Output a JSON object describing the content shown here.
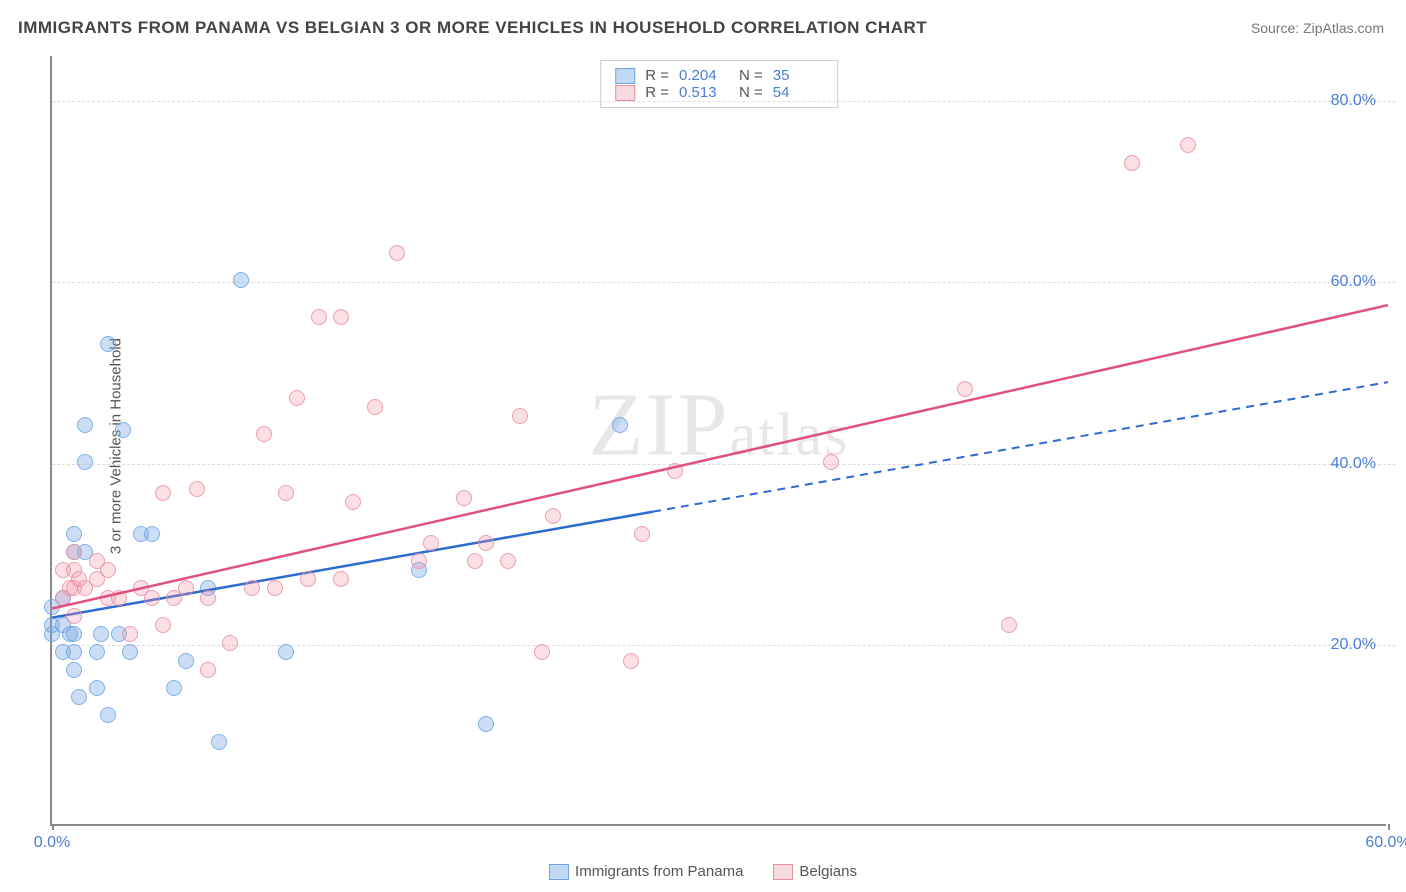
{
  "title": "IMMIGRANTS FROM PANAMA VS BELGIAN 3 OR MORE VEHICLES IN HOUSEHOLD CORRELATION CHART",
  "source_label": "Source: ",
  "source_name": "ZipAtlas.com",
  "ylabel": "3 or more Vehicles in Household",
  "watermark_1": "ZIP",
  "watermark_2": "atlas",
  "chart": {
    "type": "scatter",
    "xlim": [
      0,
      60
    ],
    "ylim": [
      0,
      85
    ],
    "xticks": [
      {
        "v": 0,
        "label": "0.0%"
      },
      {
        "v": 60,
        "label": "60.0%"
      }
    ],
    "yticks": [
      {
        "v": 20,
        "label": "20.0%"
      },
      {
        "v": 40,
        "label": "40.0%"
      },
      {
        "v": 60,
        "label": "60.0%"
      },
      {
        "v": 80,
        "label": "80.0%"
      }
    ],
    "series": [
      {
        "name": "Immigrants from Panama",
        "color": "#6da3e0",
        "fill": "rgba(120,170,230,0.45)",
        "css": "blue",
        "R": "0.204",
        "N": "35",
        "trend": {
          "x1": 0,
          "y1": 23,
          "x2": 60,
          "y2": 49,
          "dash_after_x": 27
        },
        "points": [
          [
            0,
            21
          ],
          [
            0,
            22
          ],
          [
            0,
            24
          ],
          [
            0.5,
            19
          ],
          [
            0.5,
            22
          ],
          [
            0.5,
            25
          ],
          [
            0.8,
            21
          ],
          [
            1,
            17
          ],
          [
            1,
            19
          ],
          [
            1,
            21
          ],
          [
            1,
            30
          ],
          [
            1,
            32
          ],
          [
            1.2,
            14
          ],
          [
            1.5,
            30
          ],
          [
            1.5,
            40
          ],
          [
            1.5,
            44
          ],
          [
            2,
            15
          ],
          [
            2,
            19
          ],
          [
            2.2,
            21
          ],
          [
            2.5,
            12
          ],
          [
            2.5,
            53
          ],
          [
            3,
            21
          ],
          [
            3.2,
            43.5
          ],
          [
            3.5,
            19
          ],
          [
            4,
            32
          ],
          [
            4.5,
            32
          ],
          [
            5.5,
            15
          ],
          [
            6,
            18
          ],
          [
            7,
            26
          ],
          [
            7.5,
            9
          ],
          [
            8.5,
            60
          ],
          [
            10.5,
            19
          ],
          [
            16.5,
            28
          ],
          [
            19.5,
            11
          ],
          [
            25.5,
            44
          ]
        ]
      },
      {
        "name": "Belgians",
        "color": "#e05080",
        "fill": "rgba(240,150,170,0.35)",
        "css": "pink",
        "R": "0.513",
        "N": "54",
        "trend": {
          "x1": 0,
          "y1": 24,
          "x2": 60,
          "y2": 57.5,
          "dash_after_x": 60
        },
        "points": [
          [
            0.5,
            25
          ],
          [
            0.5,
            28
          ],
          [
            0.8,
            26
          ],
          [
            1,
            23
          ],
          [
            1,
            26
          ],
          [
            1,
            28
          ],
          [
            1,
            30
          ],
          [
            1.2,
            27
          ],
          [
            1.5,
            26
          ],
          [
            2,
            27
          ],
          [
            2,
            29
          ],
          [
            2.5,
            25
          ],
          [
            2.5,
            28
          ],
          [
            3,
            25
          ],
          [
            3.5,
            21
          ],
          [
            4,
            26
          ],
          [
            4.5,
            25
          ],
          [
            5,
            22
          ],
          [
            5,
            36.5
          ],
          [
            5.5,
            25
          ],
          [
            6,
            26
          ],
          [
            6.5,
            37
          ],
          [
            7,
            17
          ],
          [
            7,
            25
          ],
          [
            8,
            20
          ],
          [
            9,
            26
          ],
          [
            9.5,
            43
          ],
          [
            10,
            26
          ],
          [
            10.5,
            36.5
          ],
          [
            11,
            47
          ],
          [
            11.5,
            27
          ],
          [
            12,
            56
          ],
          [
            13,
            27
          ],
          [
            13,
            56
          ],
          [
            13.5,
            35.5
          ],
          [
            14.5,
            46
          ],
          [
            15.5,
            63
          ],
          [
            16.5,
            29
          ],
          [
            17,
            31
          ],
          [
            18.5,
            36
          ],
          [
            19,
            29
          ],
          [
            19.5,
            31
          ],
          [
            20.5,
            29
          ],
          [
            21,
            45
          ],
          [
            22,
            19
          ],
          [
            22.5,
            34
          ],
          [
            26,
            18
          ],
          [
            26.5,
            32
          ],
          [
            28,
            39
          ],
          [
            35,
            40
          ],
          [
            41,
            48
          ],
          [
            43,
            22
          ],
          [
            48.5,
            73
          ],
          [
            51,
            75
          ]
        ]
      }
    ]
  },
  "legend_bottom": [
    {
      "label": "Immigrants from Panama",
      "css": "blue-sw"
    },
    {
      "label": "Belgians",
      "css": "pink-sw"
    }
  ]
}
